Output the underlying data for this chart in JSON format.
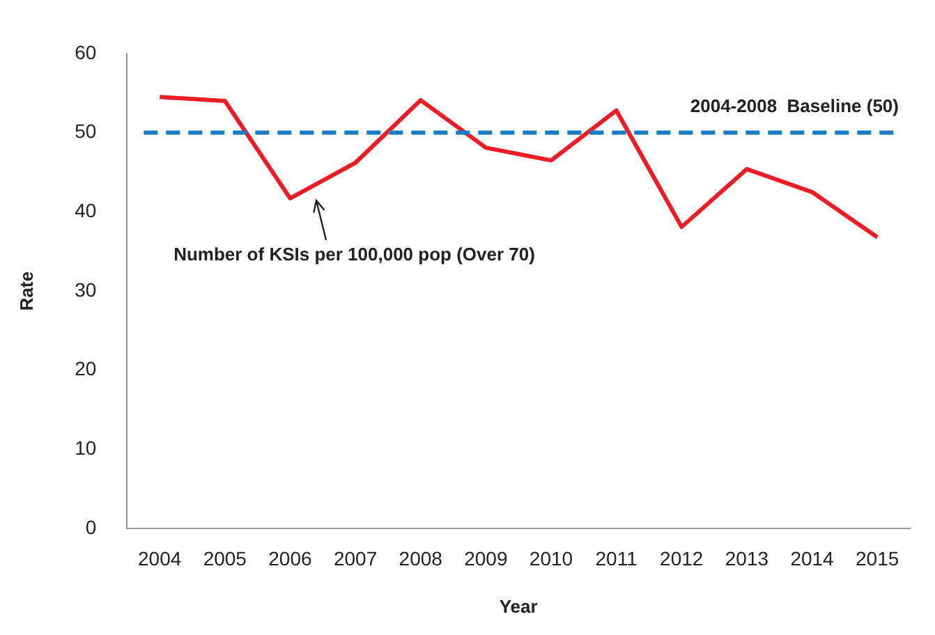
{
  "chart_data": {
    "type": "line",
    "xlabel": "Year",
    "ylabel": "Rate",
    "categories": [
      "2004",
      "2005",
      "2006",
      "2007",
      "2008",
      "2009",
      "2010",
      "2011",
      "2012",
      "2013",
      "2014",
      "2015"
    ],
    "series": [
      {
        "name": "Number of KSIs per 100,000 pop (Over 70)",
        "color": "#ee1c25",
        "values": [
          54.5,
          54.0,
          41.7,
          46.2,
          54.1,
          48.1,
          46.5,
          52.8,
          38.1,
          45.4,
          42.5,
          36.8
        ]
      }
    ],
    "ylim": [
      0,
      60
    ],
    "yticks": [
      0,
      10,
      20,
      30,
      40,
      50,
      60
    ],
    "ref_lines": [
      {
        "axis": "y",
        "value": 50,
        "label": "2004-2008  Baseline (50)",
        "color": "#1a7dc4",
        "line_style": "dashed"
      }
    ],
    "grid": false,
    "legend": false,
    "marker": "none",
    "line_style": "solid"
  }
}
